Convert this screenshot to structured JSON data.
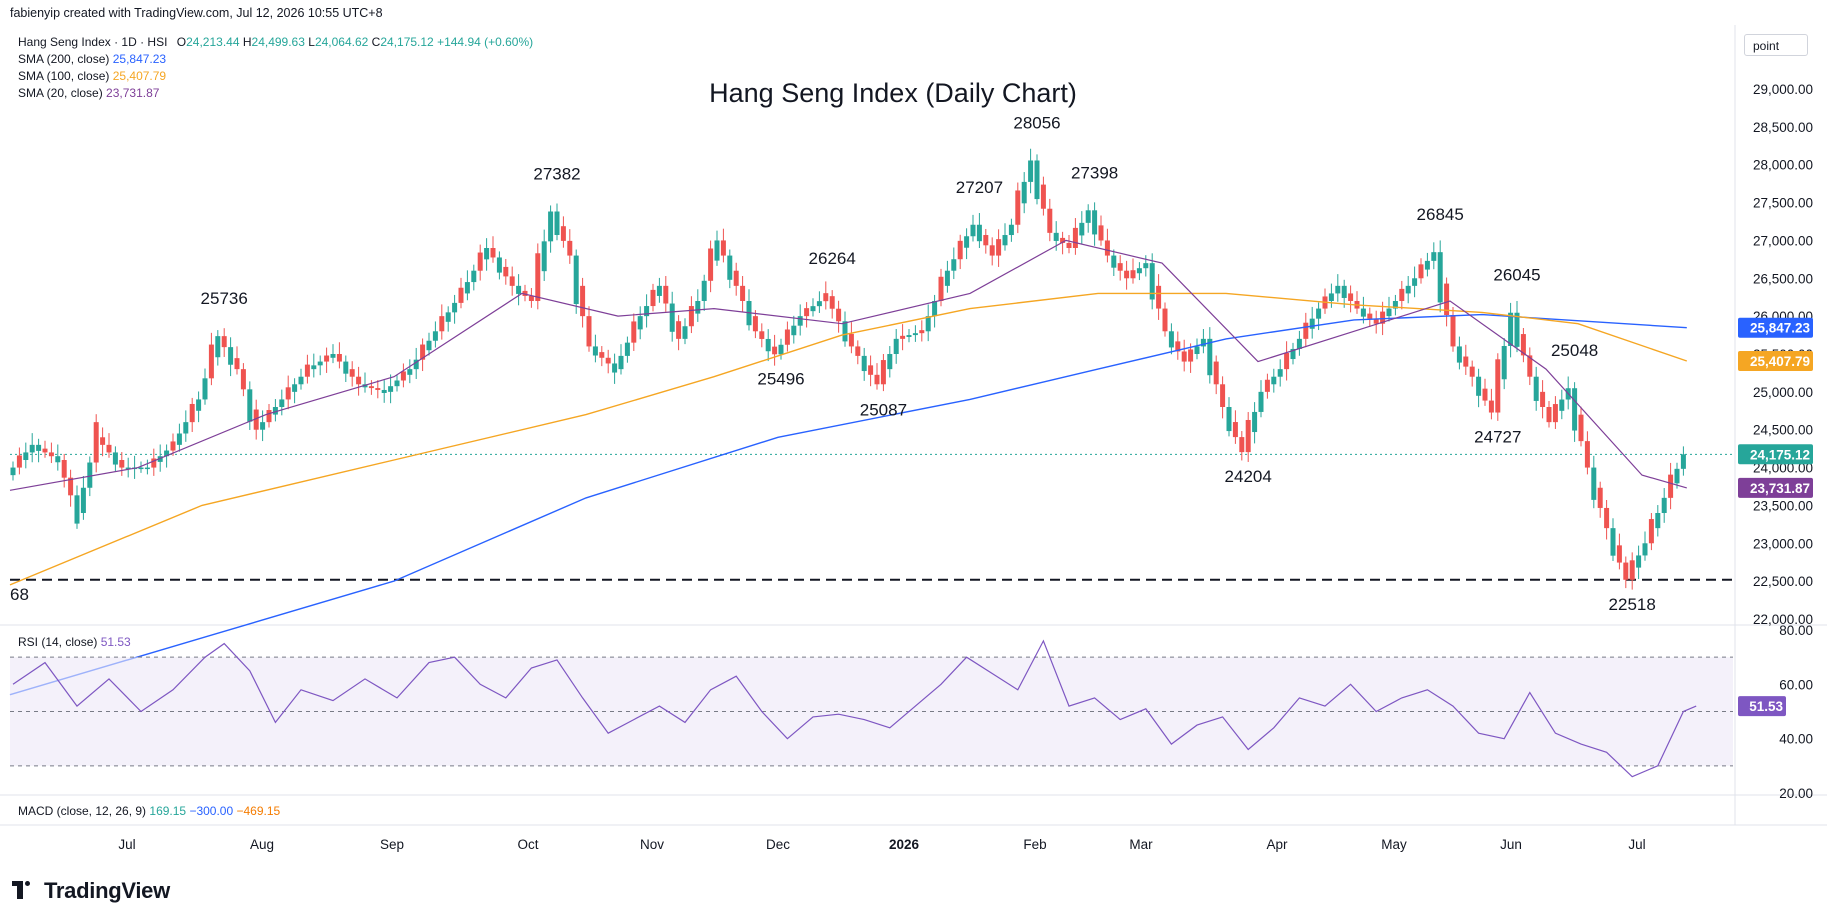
{
  "header": {
    "created_by": "fabienyip created with TradingView.com, Jul 12, 2026 10:55 UTC+8",
    "symbol": "Hang Seng Index · 1D · HSI",
    "open_label": "O",
    "open": "24,213.44",
    "high_label": "H",
    "high": "24,499.63",
    "low_label": "L",
    "low": "24,064.62",
    "close_label": "C",
    "close": "24,175.12",
    "change": "+144.94 (+0.60%)",
    "sma200_label": "SMA (200, close)",
    "sma200_value": "25,847.23",
    "sma100_label": "SMA (100, close)",
    "sma100_value": "25,407.79",
    "sma20_label": "SMA (20, close)",
    "sma20_value": "23,731.87",
    "rsi_label": "RSI (14, close)",
    "rsi_value": "51.53",
    "macd_label": "MACD (close, 12, 26, 9)",
    "macd_1": "169.15",
    "macd_2": "−300.00",
    "macd_3": "−469.15",
    "scale_button": "point"
  },
  "brand": {
    "name": "TradingView"
  },
  "colors": {
    "up": "#26a69a",
    "down": "#ef5350",
    "sma200": "#2962ff",
    "sma100": "#f5a623",
    "sma20": "#7e3f98",
    "rsi": "#7e57c2",
    "rsi_band": "#ede7f6"
  },
  "chart_data": {
    "type": "line",
    "title": "Hang Seng Index (Daily Chart)",
    "y_axis": {
      "min": 22000,
      "max": 29000,
      "ticks": [
        "22,000.00",
        "22,500.00",
        "23,000.00",
        "23,500.00",
        "24,000.00",
        "24,500.00",
        "25,000.00",
        "25,500.00",
        "26,000.00",
        "26,500.00",
        "27,000.00",
        "27,500.00",
        "28,000.00",
        "28,500.00",
        "29,000.00"
      ]
    },
    "x_axis": {
      "labels": [
        "Jul",
        "Aug",
        "Sep",
        "Oct",
        "Nov",
        "Dec",
        "2026",
        "Feb",
        "Mar",
        "Apr",
        "May",
        "Jun",
        "Jul"
      ]
    },
    "price_close_series": [
      [
        0,
        23900
      ],
      [
        4,
        24300
      ],
      [
        8,
        24100
      ],
      [
        11,
        23400
      ],
      [
        14,
        24400
      ],
      [
        18,
        24000
      ],
      [
        22,
        24000
      ],
      [
        26,
        24300
      ],
      [
        30,
        24900
      ],
      [
        33,
        25736
      ],
      [
        36,
        25300
      ],
      [
        39,
        24500
      ],
      [
        43,
        24900
      ],
      [
        47,
        25300
      ],
      [
        51,
        25500
      ],
      [
        55,
        25100
      ],
      [
        59,
        25000
      ],
      [
        63,
        25300
      ],
      [
        67,
        25800
      ],
      [
        71,
        26300
      ],
      [
        75,
        26900
      ],
      [
        79,
        26400
      ],
      [
        82,
        26200
      ],
      [
        85,
        27382
      ],
      [
        88,
        26800
      ],
      [
        91,
        25600
      ],
      [
        95,
        25300
      ],
      [
        99,
        26000
      ],
      [
        102,
        26400
      ],
      [
        105,
        25700
      ],
      [
        108,
        26200
      ],
      [
        111,
        27000
      ],
      [
        114,
        26400
      ],
      [
        117,
        25800
      ],
      [
        120,
        25496
      ],
      [
        124,
        26000
      ],
      [
        128,
        26264
      ],
      [
        132,
        25600
      ],
      [
        136,
        25100
      ],
      [
        139,
        25700
      ],
      [
        143,
        25800
      ],
      [
        147,
        26600
      ],
      [
        151,
        27207
      ],
      [
        154,
        26800
      ],
      [
        157,
        27207
      ],
      [
        160,
        28056
      ],
      [
        163,
        27100
      ],
      [
        166,
        26900
      ],
      [
        169,
        27398
      ],
      [
        172,
        26800
      ],
      [
        175,
        26500
      ],
      [
        178,
        26700
      ],
      [
        181,
        25800
      ],
      [
        184,
        25400
      ],
      [
        187,
        25700
      ],
      [
        190,
        24800
      ],
      [
        193,
        24204
      ],
      [
        196,
        25000
      ],
      [
        199,
        25300
      ],
      [
        202,
        25700
      ],
      [
        205,
        26100
      ],
      [
        208,
        26400
      ],
      [
        211,
        26100
      ],
      [
        214,
        25900
      ],
      [
        217,
        26200
      ],
      [
        220,
        26500
      ],
      [
        223,
        26845
      ],
      [
        226,
        25600
      ],
      [
        229,
        25200
      ],
      [
        232,
        24727
      ],
      [
        235,
        26045
      ],
      [
        238,
        25200
      ],
      [
        241,
        24600
      ],
      [
        244,
        25048
      ],
      [
        247,
        24000
      ],
      [
        250,
        23200
      ],
      [
        253,
        22518
      ],
      [
        256,
        23000
      ],
      [
        259,
        23600
      ],
      [
        262,
        24175
      ]
    ],
    "sma200": [
      [
        0,
        21000
      ],
      [
        60,
        22500
      ],
      [
        90,
        23600
      ],
      [
        120,
        24400
      ],
      [
        150,
        24900
      ],
      [
        170,
        25300
      ],
      [
        190,
        25700
      ],
      [
        210,
        25950
      ],
      [
        230,
        26020
      ],
      [
        262,
        25847
      ]
    ],
    "sma100": [
      [
        0,
        22450
      ],
      [
        30,
        23500
      ],
      [
        60,
        24100
      ],
      [
        90,
        24700
      ],
      [
        110,
        25200
      ],
      [
        130,
        25750
      ],
      [
        150,
        26100
      ],
      [
        170,
        26300
      ],
      [
        190,
        26300
      ],
      [
        210,
        26150
      ],
      [
        230,
        26050
      ],
      [
        245,
        25900
      ],
      [
        262,
        25408
      ]
    ],
    "sma20": [
      [
        0,
        23700
      ],
      [
        20,
        24000
      ],
      [
        40,
        24700
      ],
      [
        60,
        25200
      ],
      [
        80,
        26300
      ],
      [
        95,
        26000
      ],
      [
        110,
        26100
      ],
      [
        130,
        25900
      ],
      [
        150,
        26300
      ],
      [
        165,
        27000
      ],
      [
        180,
        26700
      ],
      [
        195,
        25400
      ],
      [
        210,
        25800
      ],
      [
        225,
        26200
      ],
      [
        240,
        25300
      ],
      [
        255,
        23900
      ],
      [
        262,
        23732
      ]
    ],
    "support_level": 22518,
    "annotations": [
      {
        "x": 33,
        "y": 25736,
        "text": "25736",
        "pos": "above"
      },
      {
        "x": 85,
        "y": 27382,
        "text": "27382",
        "pos": "above"
      },
      {
        "x": 120,
        "y": 25496,
        "text": "25496",
        "pos": "below"
      },
      {
        "x": 128,
        "y": 26264,
        "text": "26264",
        "pos": "above"
      },
      {
        "x": 136,
        "y": 25087,
        "text": "25087",
        "pos": "below"
      },
      {
        "x": 151,
        "y": 27207,
        "text": "27207",
        "pos": "above"
      },
      {
        "x": 160,
        "y": 28056,
        "text": "28056",
        "pos": "above"
      },
      {
        "x": 169,
        "y": 27398,
        "text": "27398",
        "pos": "above"
      },
      {
        "x": 193,
        "y": 24204,
        "text": "24204",
        "pos": "below"
      },
      {
        "x": 223,
        "y": 26845,
        "text": "26845",
        "pos": "above"
      },
      {
        "x": 232,
        "y": 24727,
        "text": "24727",
        "pos": "below"
      },
      {
        "x": 235,
        "y": 26045,
        "text": "26045",
        "pos": "above"
      },
      {
        "x": 244,
        "y": 25048,
        "text": "25048",
        "pos": "above"
      },
      {
        "x": 253,
        "y": 22518,
        "text": "22518",
        "pos": "below"
      }
    ],
    "left_edge_label": "68",
    "price_tags": [
      {
        "value": 25847.23,
        "text": "25,847.23",
        "color": "#2962ff"
      },
      {
        "value": 25407.79,
        "text": "25,407.79",
        "color": "#f5a623"
      },
      {
        "value": 24175.12,
        "text": "24,175.12",
        "color": "#26a69a"
      },
      {
        "value": 23731.87,
        "text": "23,731.87",
        "color": "#7e3f98"
      }
    ],
    "rsi": {
      "ticks": [
        "20.00",
        "40.00",
        "60.00",
        "80.00"
      ],
      "upper_band": 70,
      "lower_band": 30,
      "mid": 50,
      "series": [
        [
          0,
          60
        ],
        [
          5,
          68
        ],
        [
          10,
          52
        ],
        [
          15,
          62
        ],
        [
          20,
          50
        ],
        [
          25,
          58
        ],
        [
          30,
          70
        ],
        [
          33,
          75
        ],
        [
          37,
          65
        ],
        [
          41,
          46
        ],
        [
          45,
          58
        ],
        [
          50,
          54
        ],
        [
          55,
          62
        ],
        [
          60,
          55
        ],
        [
          65,
          68
        ],
        [
          69,
          70
        ],
        [
          73,
          60
        ],
        [
          77,
          55
        ],
        [
          81,
          66
        ],
        [
          85,
          69
        ],
        [
          89,
          55
        ],
        [
          93,
          42
        ],
        [
          97,
          47
        ],
        [
          101,
          52
        ],
        [
          105,
          46
        ],
        [
          109,
          58
        ],
        [
          113,
          63
        ],
        [
          117,
          50
        ],
        [
          121,
          40
        ],
        [
          125,
          48
        ],
        [
          129,
          49
        ],
        [
          133,
          47
        ],
        [
          137,
          44
        ],
        [
          141,
          52
        ],
        [
          145,
          60
        ],
        [
          149,
          70
        ],
        [
          153,
          64
        ],
        [
          157,
          58
        ],
        [
          161,
          76
        ],
        [
          165,
          52
        ],
        [
          169,
          55
        ],
        [
          173,
          47
        ],
        [
          177,
          51
        ],
        [
          181,
          38
        ],
        [
          185,
          45
        ],
        [
          189,
          48
        ],
        [
          193,
          36
        ],
        [
          197,
          44
        ],
        [
          201,
          55
        ],
        [
          205,
          52
        ],
        [
          209,
          60
        ],
        [
          213,
          50
        ],
        [
          217,
          55
        ],
        [
          221,
          58
        ],
        [
          225,
          52
        ],
        [
          229,
          42
        ],
        [
          233,
          40
        ],
        [
          237,
          57
        ],
        [
          241,
          42
        ],
        [
          245,
          38
        ],
        [
          249,
          35
        ],
        [
          253,
          26
        ],
        [
          257,
          30
        ],
        [
          261,
          50
        ],
        [
          263,
          52
        ]
      ]
    }
  }
}
